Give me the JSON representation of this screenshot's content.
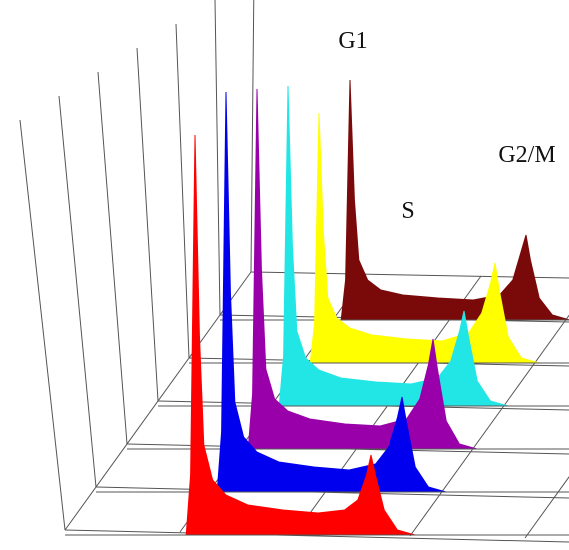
{
  "chart_data": {
    "type": "waterfall",
    "annotations": [
      "G1",
      "S",
      "G2/M"
    ],
    "x": [
      15,
      18,
      19,
      20,
      21,
      22,
      24,
      27,
      32,
      40,
      48,
      54,
      57,
      59,
      60,
      61,
      63,
      66,
      70
    ],
    "series": [
      {
        "color": "#ff0000",
        "values": [
          0,
          0,
          60,
          400,
          200,
          90,
          55,
          40,
          30,
          25,
          22,
          25,
          35,
          60,
          80,
          60,
          25,
          5,
          0
        ]
      },
      {
        "color": "#0000ee",
        "values": [
          0,
          0,
          60,
          400,
          200,
          90,
          55,
          40,
          30,
          25,
          22,
          28,
          45,
          75,
          95,
          70,
          25,
          5,
          0
        ]
      },
      {
        "color": "#9900aa",
        "values": [
          0,
          0,
          55,
          360,
          180,
          80,
          50,
          38,
          30,
          25,
          23,
          30,
          50,
          85,
          110,
          80,
          28,
          5,
          0
        ]
      },
      {
        "color": "#22e6e6",
        "values": [
          0,
          0,
          50,
          320,
          160,
          75,
          48,
          36,
          28,
          24,
          22,
          28,
          45,
          75,
          95,
          70,
          25,
          5,
          0
        ]
      },
      {
        "color": "#ffff00",
        "values": [
          0,
          0,
          40,
          250,
          130,
          65,
          45,
          35,
          28,
          24,
          22,
          30,
          50,
          80,
          100,
          72,
          26,
          5,
          0
        ]
      },
      {
        "color": "#7a0a0a",
        "values": [
          0,
          0,
          40,
          240,
          120,
          60,
          40,
          30,
          25,
          22,
          20,
          25,
          40,
          70,
          85,
          60,
          22,
          5,
          0
        ]
      }
    ]
  }
}
